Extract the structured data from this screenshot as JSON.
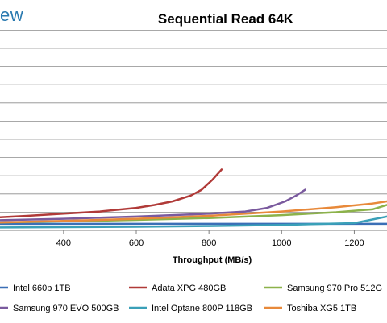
{
  "brand": {
    "text": "ew",
    "color": "#2a7ab0"
  },
  "chart_data": {
    "type": "line",
    "title": "Sequential Read 64K",
    "xlabel": "Throughput (MB/s)",
    "ylabel": "",
    "xlim": [
      225,
      1290
    ],
    "ylim": [
      0,
      14
    ],
    "x_ticks": [
      400,
      600,
      800,
      1000,
      1200
    ],
    "grid": "horizontal",
    "legend_position": "bottom",
    "series": [
      {
        "name": "Intel 660p 1TB",
        "color": "#3b6fb6",
        "points": [
          [
            225,
            0.45
          ],
          [
            1290,
            0.45
          ]
        ]
      },
      {
        "name": "Adata XPG 480GB",
        "color": "#b03a38",
        "points": [
          [
            225,
            0.9
          ],
          [
            300,
            1.0
          ],
          [
            400,
            1.15
          ],
          [
            500,
            1.3
          ],
          [
            600,
            1.55
          ],
          [
            650,
            1.75
          ],
          [
            700,
            2.0
          ],
          [
            750,
            2.4
          ],
          [
            780,
            2.8
          ],
          [
            810,
            3.5
          ],
          [
            835,
            4.2
          ]
        ]
      },
      {
        "name": "Samsung 970 Pro 512G",
        "color": "#8cb24a",
        "points": [
          [
            225,
            0.55
          ],
          [
            400,
            0.62
          ],
          [
            600,
            0.72
          ],
          [
            800,
            0.85
          ],
          [
            1000,
            1.05
          ],
          [
            1150,
            1.25
          ],
          [
            1250,
            1.45
          ],
          [
            1290,
            1.75
          ]
        ]
      },
      {
        "name": "Samsung 970 EVO 500GB",
        "color": "#7a5a9e",
        "points": [
          [
            225,
            0.7
          ],
          [
            400,
            0.8
          ],
          [
            600,
            0.95
          ],
          [
            800,
            1.15
          ],
          [
            900,
            1.3
          ],
          [
            960,
            1.55
          ],
          [
            1010,
            2.0
          ],
          [
            1040,
            2.4
          ],
          [
            1065,
            2.8
          ]
        ]
      },
      {
        "name": "Intel Optane 800P 118GB",
        "color": "#3aa0b8",
        "points": [
          [
            225,
            0.2
          ],
          [
            400,
            0.22
          ],
          [
            600,
            0.25
          ],
          [
            800,
            0.3
          ],
          [
            1000,
            0.38
          ],
          [
            1200,
            0.5
          ],
          [
            1290,
            0.95
          ]
        ]
      },
      {
        "name": "Toshiba XG5 1TB",
        "color": "#e8893a",
        "points": [
          [
            225,
            0.55
          ],
          [
            400,
            0.65
          ],
          [
            600,
            0.8
          ],
          [
            800,
            1.0
          ],
          [
            1000,
            1.3
          ],
          [
            1150,
            1.6
          ],
          [
            1250,
            1.85
          ],
          [
            1290,
            2.0
          ]
        ]
      }
    ]
  }
}
